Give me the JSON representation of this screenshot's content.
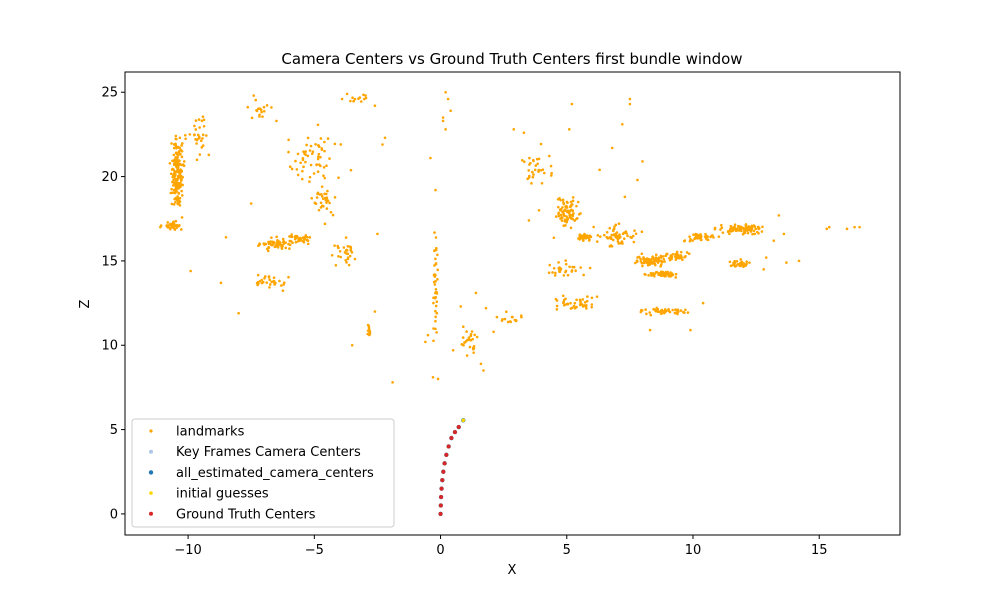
{
  "chart_data": {
    "type": "scatter",
    "title": "Camera Centers vs Ground Truth Centers first bundle window",
    "xlabel": "X",
    "ylabel": "Z",
    "xlim": [
      -12.5,
      18.2
    ],
    "ylim": [
      -1.25,
      26.2
    ],
    "x_ticks": [
      -10,
      -5,
      0,
      5,
      10,
      15
    ],
    "y_ticks": [
      0,
      5,
      10,
      15,
      20,
      25
    ],
    "grid": false,
    "legend_position": "lower-left",
    "series": [
      {
        "name": "landmarks",
        "color": "#ffa500",
        "marker_size": 1.3,
        "clusters": [
          {
            "center": [
              -10.4,
              20.0
            ],
            "spread": [
              0.35,
              2.8
            ],
            "count": 180
          },
          {
            "center": [
              -10.6,
              17.1
            ],
            "spread": [
              0.5,
              0.35
            ],
            "count": 40
          },
          {
            "center": [
              -9.6,
              22.5
            ],
            "spread": [
              0.7,
              1.8
            ],
            "count": 30
          },
          {
            "center": [
              -6.5,
              16.0
            ],
            "spread": [
              0.9,
              0.5
            ],
            "count": 60
          },
          {
            "center": [
              -5.6,
              16.3
            ],
            "spread": [
              0.8,
              0.35
            ],
            "count": 40
          },
          {
            "center": [
              -5.0,
              21.0
            ],
            "spread": [
              1.4,
              2.2
            ],
            "count": 60
          },
          {
            "center": [
              -4.6,
              18.5
            ],
            "spread": [
              0.6,
              1.2
            ],
            "count": 30
          },
          {
            "center": [
              -6.8,
              13.8
            ],
            "spread": [
              1.0,
              0.6
            ],
            "count": 30
          },
          {
            "center": [
              -3.8,
              15.5
            ],
            "spread": [
              0.6,
              0.9
            ],
            "count": 30
          },
          {
            "center": [
              -7.2,
              24.0
            ],
            "spread": [
              0.6,
              0.7
            ],
            "count": 15
          },
          {
            "center": [
              -3.2,
              24.5
            ],
            "spread": [
              0.5,
              0.4
            ],
            "count": 12
          },
          {
            "center": [
              -2.8,
              10.8
            ],
            "spread": [
              0.15,
              0.8
            ],
            "count": 10
          },
          {
            "center": [
              -0.2,
              14.0
            ],
            "spread": [
              0.12,
              4.5
            ],
            "count": 40
          },
          {
            "center": [
              1.2,
              10.2
            ],
            "spread": [
              0.5,
              1.0
            ],
            "count": 25
          },
          {
            "center": [
              2.7,
              11.5
            ],
            "spread": [
              0.8,
              0.5
            ],
            "count": 15
          },
          {
            "center": [
              5.0,
              17.8
            ],
            "spread": [
              0.7,
              1.2
            ],
            "count": 80
          },
          {
            "center": [
              5.7,
              16.4
            ],
            "spread": [
              0.4,
              0.3
            ],
            "count": 40
          },
          {
            "center": [
              3.8,
              20.5
            ],
            "spread": [
              0.8,
              1.4
            ],
            "count": 30
          },
          {
            "center": [
              7.0,
              16.5
            ],
            "spread": [
              1.0,
              0.8
            ],
            "count": 60
          },
          {
            "center": [
              8.3,
              15.0
            ],
            "spread": [
              0.9,
              0.4
            ],
            "count": 80
          },
          {
            "center": [
              8.8,
              14.2
            ],
            "spread": [
              0.8,
              0.25
            ],
            "count": 50
          },
          {
            "center": [
              9.4,
              15.3
            ],
            "spread": [
              0.6,
              0.3
            ],
            "count": 40
          },
          {
            "center": [
              10.3,
              16.4
            ],
            "spread": [
              0.9,
              0.3
            ],
            "count": 40
          },
          {
            "center": [
              12.0,
              16.9
            ],
            "spread": [
              1.1,
              0.35
            ],
            "count": 90
          },
          {
            "center": [
              11.8,
              14.8
            ],
            "spread": [
              0.6,
              0.3
            ],
            "count": 30
          },
          {
            "center": [
              8.8,
              12.0
            ],
            "spread": [
              1.3,
              0.3
            ],
            "count": 50
          },
          {
            "center": [
              5.5,
              12.5
            ],
            "spread": [
              1.4,
              0.6
            ],
            "count": 40
          },
          {
            "center": [
              5.0,
              14.5
            ],
            "spread": [
              1.0,
              0.8
            ],
            "count": 30
          }
        ],
        "points": [
          [
            -11.1,
            17.0
          ],
          [
            -8.0,
            11.9
          ],
          [
            -1.9,
            7.8
          ],
          [
            -0.3,
            8.1
          ],
          [
            -0.1,
            8.0
          ],
          [
            -0.4,
            21.1
          ],
          [
            -0.2,
            19.2
          ],
          [
            0.1,
            23.3
          ],
          [
            0.2,
            22.8
          ],
          [
            0.1,
            23.5
          ],
          [
            0.2,
            25.0
          ],
          [
            0.3,
            24.6
          ],
          [
            0.4,
            23.9
          ],
          [
            1.7,
            8.5
          ],
          [
            1.6,
            8.9
          ],
          [
            2.9,
            22.8
          ],
          [
            3.3,
            22.6
          ],
          [
            5.2,
            24.3
          ],
          [
            5.1,
            22.8
          ],
          [
            7.2,
            23.1
          ],
          [
            7.5,
            24.3
          ],
          [
            7.5,
            24.6
          ],
          [
            6.8,
            21.7
          ],
          [
            7.8,
            19.8
          ],
          [
            8.0,
            20.9
          ],
          [
            7.3,
            18.8
          ],
          [
            1.4,
            13.1
          ],
          [
            1.8,
            12.2
          ],
          [
            -2.6,
            12.0
          ],
          [
            -2.5,
            16.6
          ],
          [
            -2.3,
            21.9
          ],
          [
            -2.2,
            22.3
          ],
          [
            -3.5,
            10.0
          ],
          [
            -8.7,
            13.7
          ],
          [
            -9.9,
            14.4
          ],
          [
            -8.5,
            16.4
          ],
          [
            -7.5,
            18.4
          ],
          [
            -7.4,
            24.8
          ],
          [
            -6.7,
            24.1
          ],
          [
            -6.5,
            23.3
          ],
          [
            -2.6,
            24.2
          ],
          [
            -3.7,
            24.9
          ],
          [
            -3.9,
            24.6
          ],
          [
            13.6,
            16.6
          ],
          [
            13.4,
            17.7
          ],
          [
            14.2,
            15.0
          ],
          [
            13.7,
            14.9
          ],
          [
            15.3,
            16.9
          ],
          [
            15.4,
            17.0
          ],
          [
            16.1,
            16.9
          ],
          [
            16.4,
            17.0
          ],
          [
            16.6,
            17.0
          ],
          [
            12.8,
            14.5
          ],
          [
            13.2,
            16.2
          ],
          [
            12.9,
            15.2
          ],
          [
            9.9,
            10.9
          ],
          [
            8.3,
            10.9
          ],
          [
            10.4,
            12.5
          ],
          [
            9.7,
            12.1
          ],
          [
            -0.6,
            10.2
          ],
          [
            -0.5,
            10.6
          ],
          [
            0.9,
            11.1
          ],
          [
            0.8,
            12.3
          ],
          [
            0.5,
            9.7
          ],
          [
            2.1,
            10.8
          ],
          [
            3.6,
            19.6
          ],
          [
            3.9,
            18.0
          ],
          [
            3.5,
            17.4
          ],
          [
            6.3,
            20.4
          ],
          [
            4.4,
            20.2
          ]
        ]
      },
      {
        "name": "Key Frames Camera Centers",
        "color": "#aec7e8",
        "marker_size": 2,
        "points": [
          [
            0.0,
            0.0
          ],
          [
            0.9,
            5.55
          ]
        ]
      },
      {
        "name": "all_estimated_camera_centers",
        "color": "#1f77b4",
        "marker_size": 2.2,
        "points": [
          [
            0.0,
            0.0
          ],
          [
            0.01,
            0.5
          ],
          [
            0.02,
            1.0
          ],
          [
            0.04,
            1.5
          ],
          [
            0.07,
            2.0
          ],
          [
            0.11,
            2.5
          ],
          [
            0.16,
            3.0
          ],
          [
            0.23,
            3.5
          ],
          [
            0.32,
            4.0
          ],
          [
            0.43,
            4.5
          ],
          [
            0.57,
            4.85
          ],
          [
            0.72,
            5.15
          ],
          [
            0.9,
            5.55
          ]
        ]
      },
      {
        "name": "initial guesses",
        "color": "#ffd700",
        "marker_size": 1.8,
        "points": [
          [
            0.0,
            0.0
          ],
          [
            0.01,
            0.5
          ],
          [
            0.02,
            1.0
          ],
          [
            0.04,
            1.5
          ],
          [
            0.07,
            2.0
          ],
          [
            0.11,
            2.5
          ],
          [
            0.16,
            3.0
          ],
          [
            0.23,
            3.5
          ],
          [
            0.32,
            4.0
          ],
          [
            0.43,
            4.5
          ],
          [
            0.57,
            4.85
          ],
          [
            0.72,
            5.15
          ],
          [
            0.9,
            5.55
          ]
        ]
      },
      {
        "name": "Ground Truth Centers",
        "color": "#d62728",
        "marker_size": 2,
        "points": [
          [
            0.0,
            0.0
          ],
          [
            0.01,
            0.5
          ],
          [
            0.02,
            1.0
          ],
          [
            0.04,
            1.5
          ],
          [
            0.07,
            2.0
          ],
          [
            0.11,
            2.5
          ],
          [
            0.16,
            3.0
          ],
          [
            0.23,
            3.5
          ],
          [
            0.32,
            4.0
          ],
          [
            0.43,
            4.5
          ],
          [
            0.57,
            4.85
          ],
          [
            0.72,
            5.15
          ]
        ]
      }
    ]
  }
}
